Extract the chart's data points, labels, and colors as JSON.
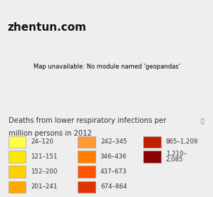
{
  "title_line1": "Deaths from lower respiratory infections per",
  "title_line2": "million persons in 2012",
  "watermark": "zhentun.com",
  "legend_items": [
    {
      "label": "24–120",
      "color": "#FFFF44"
    },
    {
      "label": "121–151",
      "color": "#FFE800"
    },
    {
      "label": "152–200",
      "color": "#FFD000"
    },
    {
      "label": "201–241",
      "color": "#FFAA00"
    },
    {
      "label": "242–345",
      "color": "#FF9933"
    },
    {
      "label": "346–436",
      "color": "#FF8000"
    },
    {
      "label": "437–673",
      "color": "#FF5500"
    },
    {
      "label": "674–864",
      "color": "#E03300"
    },
    {
      "label": "865–1,209",
      "color": "#C02000"
    },
    {
      "label": "1,210–2,085",
      "color": "#8B0000"
    }
  ],
  "country_colors": {
    "default": "#FF9933",
    "USA": "#FFAA00",
    "Canada": "#FFE800",
    "Mexico": "#FFAA00",
    "Guatemala": "#FF5500",
    "Honduras": "#FF5500",
    "El Salvador": "#FF5500",
    "Nicaragua": "#FF5500",
    "Costa Rica": "#FF9933",
    "Panama": "#FF9933",
    "Cuba": "#FF9933",
    "Haiti": "#FF5500",
    "Dominican Republic": "#FF5500",
    "Jamaica": "#FF5500",
    "Trinidad and Tobago": "#FF5500",
    "Colombia": "#FF5500",
    "Venezuela": "#FF5500",
    "Guyana": "#FF5500",
    "Suriname": "#FF5500",
    "Brazil": "#FF8000",
    "Ecuador": "#FF5500",
    "Peru": "#FF5500",
    "Bolivia": "#FF5500",
    "Paraguay": "#FF5500",
    "Chile": "#FFAA00",
    "Argentina": "#FFAA00",
    "Uruguay": "#FFAA00",
    "Greenland": "#FFE800",
    "Iceland": "#FFD000",
    "Norway": "#FFD000",
    "Sweden": "#FFD000",
    "Finland": "#FFD000",
    "Denmark": "#FFD000",
    "United Kingdom": "#FFD000",
    "Ireland": "#FFD000",
    "France": "#FFD000",
    "Spain": "#FFD000",
    "Portugal": "#FFD000",
    "Germany": "#FFD000",
    "Netherlands": "#FFD000",
    "Belgium": "#FFD000",
    "Switzerland": "#FFD000",
    "Austria": "#FFD000",
    "Italy": "#FFD000",
    "Poland": "#FFD000",
    "Czech Republic": "#FFD000",
    "Czechia": "#FFD000",
    "Slovakia": "#FFD000",
    "Hungary": "#FFD000",
    "Romania": "#FFAA00",
    "Bulgaria": "#FFAA00",
    "Serbia": "#FFAA00",
    "Croatia": "#FFD000",
    "Bosnia and Herzegovina": "#FFAA00",
    "Slovenia": "#FFD000",
    "Albania": "#FFAA00",
    "Greece": "#FFD000",
    "North Macedonia": "#FFAA00",
    "Kosovo": "#FFAA00",
    "Montenegro": "#FFAA00",
    "Moldova": "#FFAA00",
    "Ukraine": "#FFAA00",
    "Belarus": "#FFAA00",
    "Lithuania": "#FFD000",
    "Latvia": "#FFD000",
    "Estonia": "#FFD000",
    "Russia": "#FFE800",
    "Turkey": "#FF9933",
    "Georgia": "#FF9933",
    "Armenia": "#FF9933",
    "Azerbaijan": "#FF9933",
    "Kazakhstan": "#FF9933",
    "Uzbekistan": "#FF8000",
    "Turkmenistan": "#FF8000",
    "Kyrgyzstan": "#FF8000",
    "Tajikistan": "#FF5500",
    "Afghanistan": "#FF5500",
    "Pakistan": "#FF5500",
    "India": "#FF5500",
    "Nepal": "#FF5500",
    "Bangladesh": "#FF5500",
    "Sri Lanka": "#FF8000",
    "Myanmar": "#FF5500",
    "Thailand": "#FF9933",
    "Laos": "#FF5500",
    "Cambodia": "#FF5500",
    "Vietnam": "#FF5500",
    "Malaysia": "#FF9933",
    "Indonesia": "#FF8000",
    "Philippines": "#FF5500",
    "China": "#FF8000",
    "Mongolia": "#FF9933",
    "North Korea": "#FF8000",
    "South Korea": "#FFAA00",
    "Japan": "#FFD000",
    "Taiwan": "#FF9933",
    "Iran": "#FF8000",
    "Iraq": "#FF8000",
    "Syria": "#FF8000",
    "Lebanon": "#FF9933",
    "Israel": "#FF9933",
    "Jordan": "#FF9933",
    "Saudi Arabia": "#FF9933",
    "Yemen": "#E03300",
    "Oman": "#FF9933",
    "UAE": "#FF9933",
    "Kuwait": "#FF9933",
    "Qatar": "#FF9933",
    "Bahrain": "#FF9933",
    "Egypt": "#FF9933",
    "Libya": "#FF9933",
    "Tunisia": "#FF9933",
    "Algeria": "#FF9933",
    "Morocco": "#FF9933",
    "Western Sahara": "#FF9933",
    "Mauritania": "#FF5500",
    "Mali": "#E03300",
    "Niger": "#E03300",
    "Chad": "#E03300",
    "Sudan": "#E03300",
    "South Sudan": "#C02000",
    "Ethiopia": "#C02000",
    "Eritrea": "#C02000",
    "Djibouti": "#C02000",
    "Somalia": "#C02000",
    "Kenya": "#C02000",
    "Uganda": "#C02000",
    "Rwanda": "#8B0000",
    "Burundi": "#8B0000",
    "Tanzania": "#C02000",
    "Mozambique": "#C02000",
    "Zambia": "#C02000",
    "Zimbabwe": "#C02000",
    "Malawi": "#C02000",
    "Madagascar": "#C02000",
    "Comoros": "#C02000",
    "Senegal": "#E03300",
    "Gambia": "#E03300",
    "Guinea-Bissau": "#E03300",
    "Guinea": "#C02000",
    "Sierra Leone": "#C02000",
    "Liberia": "#C02000",
    "Ivory Coast": "#C02000",
    "Burkina Faso": "#C02000",
    "Ghana": "#C02000",
    "Togo": "#C02000",
    "Benin": "#C02000",
    "Nigeria": "#8B0000",
    "Cameroon": "#C02000",
    "Central African Republic": "#8B0000",
    "Democratic Republic of the Congo": "#8B0000",
    "Republic of the Congo": "#8B0000",
    "Gabon": "#C02000",
    "Equatorial Guinea": "#C02000",
    "Angola": "#C02000",
    "Namibia": "#FF9933",
    "Botswana": "#FF9933",
    "South Africa": "#FF9933",
    "Lesotho": "#FF8000",
    "Swaziland": "#FF8000",
    "eSwatini": "#FF8000",
    "Papua New Guinea": "#C02000",
    "Australia": "#FFFF44",
    "New Zealand": "#FFE800",
    "Fiji": "#FF8000",
    "Solomon Islands": "#C02000"
  },
  "ocean_color": "#ffffff",
  "bg_color": "#eeeeee",
  "map_frame_color": "#bbbbbb",
  "text_color": "#333333",
  "watermark_color": "#111111",
  "title_fontsize": 7.2,
  "legend_fontsize": 6.2,
  "watermark_fontsize": 11,
  "figsize": [
    2.99,
    2.76
  ],
  "dpi": 100
}
